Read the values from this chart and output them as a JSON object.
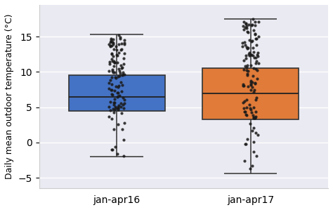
{
  "categories": [
    "jan-apr16",
    "jan-apr17"
  ],
  "box_colors": [
    "#4472c4",
    "#e07b39"
  ],
  "median": [
    6.5,
    7.0
  ],
  "q1": [
    4.5,
    3.3
  ],
  "q3": [
    9.5,
    10.5
  ],
  "whisker_low": [
    -2.0,
    -4.4
  ],
  "whisker_high": [
    15.3,
    17.5
  ],
  "ylabel": "Daily mean outdoor temperature (°C)",
  "ylim": [
    -6.5,
    19.5
  ],
  "yticks": [
    -5,
    0,
    5,
    10,
    15
  ],
  "n_points": 120,
  "dot_color": "#1a1a1a",
  "dot_alpha": 0.85,
  "dot_size": 9,
  "box_width": 0.72,
  "swarm_spread": 0.06,
  "figsize": [
    4.74,
    2.99
  ],
  "dpi": 100
}
